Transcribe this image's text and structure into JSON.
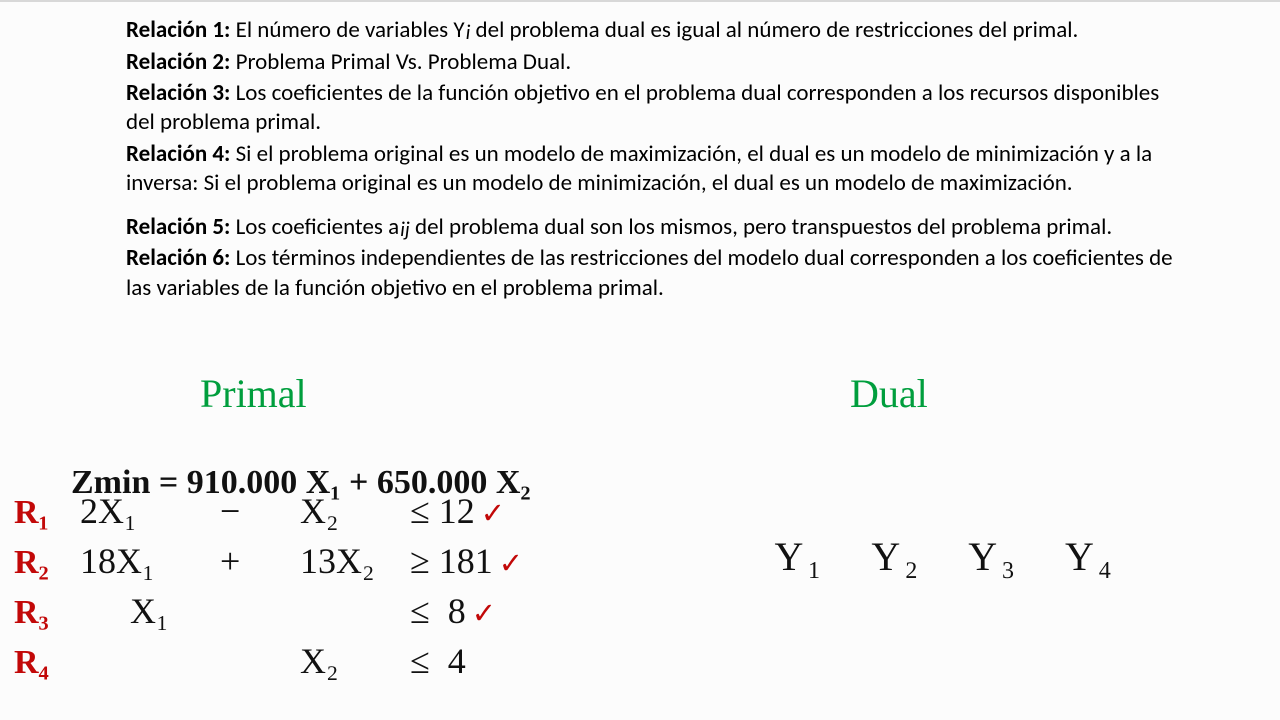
{
  "relations": [
    {
      "label": "Relación 1:",
      "text": " El número de variables Yi del problema dual es igual al número de restricciones del primal."
    },
    {
      "label": "Relación 2:",
      "text": " Problema Primal Vs. Problema Dual."
    },
    {
      "label": "Relación 3:",
      "text": " Los coeficientes de la función objetivo en el problema dual corresponden a los recursos disponibles del problema primal."
    },
    {
      "label": "Relación 4:",
      "text": " Si el problema original es un modelo de maximización, el dual es un modelo de minimización y a la inversa: Si el problema original es un modelo de minimización, el dual es un modelo de maximización."
    }
  ],
  "relations2": [
    {
      "label": "Relación 5:",
      "text": " Los coeficientes aij del problema dual son los mismos, pero transpuestos del problema primal."
    },
    {
      "label": "Relación 6:",
      "text": " Los términos independientes de las restricciones del modelo dual corresponden a los coeficientes de las variables de la función objetivo en el problema primal."
    }
  ],
  "hw": {
    "primal_title": "Primal",
    "dual_title": "Dual",
    "obj_lhs": "Zmin =",
    "obj_rhs": "910.000 X₁ + 650.000 X₂",
    "rows": [
      {
        "r": "R₁",
        "c1": "2X₁",
        "op": "−",
        "c2": "X₂",
        "rel": "≤ 12",
        "chk": true
      },
      {
        "r": "R₂",
        "c1": "18X₁",
        "op": "+",
        "c2": "13X₂",
        "rel": "≥ 181",
        "chk": true
      },
      {
        "r": "R₃",
        "c1": "X₁",
        "op": "",
        "c2": "",
        "rel": "≤  8",
        "chk": true
      },
      {
        "r": "R₄",
        "c1": "",
        "op": "",
        "c2": "X₂",
        "rel": "≤  4",
        "chk": false
      }
    ],
    "yvars": [
      "Y₁",
      "Y₂",
      "Y₃",
      "Y₄"
    ],
    "colors": {
      "title_green": "#009e3d",
      "red": "#c20808",
      "black": "#111"
    },
    "font_sizes": {
      "title": 40,
      "obj": 34,
      "row": 38,
      "y": 40
    }
  }
}
